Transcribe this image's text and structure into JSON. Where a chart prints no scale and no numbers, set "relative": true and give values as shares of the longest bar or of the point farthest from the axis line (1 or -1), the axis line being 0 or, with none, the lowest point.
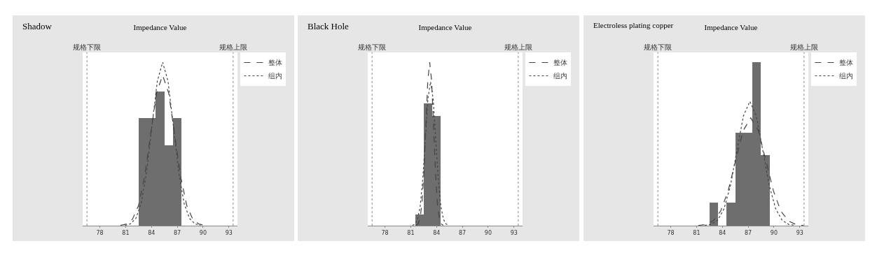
{
  "chart_data": [
    {
      "type": "histogram",
      "title": "Impedance Value",
      "annotations": [
        "Shadow"
      ],
      "relative": true,
      "color": "#6e6e6e",
      "bins": [
        82.5,
        83.5,
        84.5,
        85.5,
        86.5,
        87.5
      ],
      "values": [
        0.66,
        0.66,
        0.82,
        0.49,
        0.66
      ],
      "xlim": [
        76,
        94
      ],
      "xticks": [
        78,
        81,
        84,
        87,
        90,
        93
      ],
      "grid": false,
      "legend": "right",
      "ref_lines": [
        {
          "axis": "x",
          "value": 76.5,
          "label": "规格下限",
          "color": "#888888"
        },
        {
          "axis": "x",
          "value": 93.5,
          "label": "规格上限",
          "color": "#888888"
        }
      ],
      "series": [
        {
          "name": "整体",
          "type": "line",
          "line_style": "dashed",
          "color": "#444444",
          "x": [
            80.4,
            81.1,
            81.8,
            82.5,
            83.2,
            83.9,
            84.6,
            85.3,
            86.0,
            86.7,
            87.4,
            88.1,
            88.8,
            89.5,
            90.2
          ],
          "values": [
            0.002,
            0.01,
            0.04,
            0.124,
            0.299,
            0.558,
            0.812,
            0.92,
            0.812,
            0.558,
            0.299,
            0.124,
            0.04,
            0.01,
            0.002
          ]
        },
        {
          "name": "组内",
          "type": "line",
          "line_style": "dotted",
          "color": "#444444",
          "x": [
            80.93,
            81.55,
            82.18,
            82.8,
            83.43,
            84.05,
            84.68,
            85.3,
            85.93,
            86.55,
            87.18,
            87.8,
            88.43,
            89.05,
            89.68
          ],
          "values": [
            0.002,
            0.011,
            0.044,
            0.135,
            0.325,
            0.607,
            0.883,
            1,
            0.883,
            0.607,
            0.325,
            0.135,
            0.044,
            0.011,
            0.002
          ]
        }
      ]
    },
    {
      "type": "histogram",
      "title": "Impedance Value",
      "annotations": [
        "Black Hole"
      ],
      "relative": true,
      "color": "#6e6e6e",
      "bins": [
        81.5,
        82.5,
        83.5,
        84.5
      ],
      "values": [
        0.07,
        0.75,
        0.67
      ],
      "xlim": [
        76,
        94
      ],
      "xticks": [
        78,
        81,
        84,
        87,
        90,
        93
      ],
      "grid": false,
      "legend": "right",
      "ref_lines": [
        {
          "axis": "x",
          "value": 76.5,
          "label": "规格下限",
          "color": "#888888"
        },
        {
          "axis": "x",
          "value": 93.5,
          "label": "规格上限",
          "color": "#888888"
        }
      ],
      "series": [
        {
          "name": "整体",
          "type": "line",
          "line_style": "dashed",
          "color": "#444444",
          "x": [
            81.63,
            81.85,
            82.08,
            82.3,
            82.53,
            82.75,
            82.98,
            83.2,
            83.43,
            83.65,
            83.88,
            84.1,
            84.33,
            84.55,
            84.78
          ],
          "values": [
            0.002,
            0.011,
            0.044,
            0.135,
            0.325,
            0.607,
            0.883,
            1,
            0.883,
            0.607,
            0.325,
            0.135,
            0.044,
            0.011,
            0.002
          ]
        },
        {
          "name": "组内",
          "type": "line",
          "line_style": "dotted",
          "color": "#444444",
          "x": [
            81.2,
            81.5,
            81.8,
            82.1,
            82.4,
            82.7,
            83.0,
            83.3,
            83.6,
            83.9,
            84.2,
            84.5,
            84.8,
            85.1,
            85.4
          ],
          "values": [
            0.002,
            0.01,
            0.039,
            0.119,
            0.286,
            0.534,
            0.777,
            0.88,
            0.777,
            0.534,
            0.286,
            0.119,
            0.039,
            0.01,
            0.002
          ]
        }
      ]
    },
    {
      "type": "histogram",
      "title": "Impedance Value",
      "annotations": [
        "Electroless plating copper"
      ],
      "relative": true,
      "color": "#6e6e6e",
      "bins": [
        82.5,
        83.5,
        84.5,
        85.5,
        86.5,
        87.5,
        88.5,
        89.5
      ],
      "values": [
        0.14,
        0,
        0.14,
        0.57,
        0.57,
        1,
        0.43
      ],
      "xlim": [
        76,
        94
      ],
      "xticks": [
        78,
        81,
        84,
        87,
        90,
        93
      ],
      "grid": false,
      "legend": "right",
      "ref_lines": [
        {
          "axis": "x",
          "value": 76.5,
          "label": "规格下限",
          "color": "#888888"
        },
        {
          "axis": "x",
          "value": 93.5,
          "label": "规格上限",
          "color": "#888888"
        }
      ],
      "series": [
        {
          "name": "整体",
          "type": "line",
          "line_style": "dashed",
          "color": "#444444",
          "x": [
            81.18,
            82.05,
            82.93,
            83.8,
            84.68,
            85.55,
            86.43,
            87.3,
            88.18,
            89.05,
            89.93,
            90.8,
            91.68,
            92.55,
            93.43
          ],
          "values": [
            0.001,
            0.007,
            0.029,
            0.089,
            0.214,
            0.4,
            0.582,
            0.66,
            0.582,
            0.4,
            0.214,
            0.089,
            0.029,
            0.007,
            0.001
          ]
        },
        {
          "name": "组内",
          "type": "line",
          "line_style": "dotted",
          "color": "#444444",
          "x": [
            81.95,
            82.7,
            83.45,
            84.2,
            84.95,
            85.7,
            86.45,
            87.2,
            87.95,
            88.7,
            89.45,
            90.2,
            90.95,
            91.7,
            92.45
          ],
          "values": [
            0.002,
            0.008,
            0.033,
            0.103,
            0.247,
            0.461,
            0.671,
            0.76,
            0.671,
            0.461,
            0.247,
            0.103,
            0.033,
            0.008,
            0.002
          ]
        }
      ]
    }
  ]
}
